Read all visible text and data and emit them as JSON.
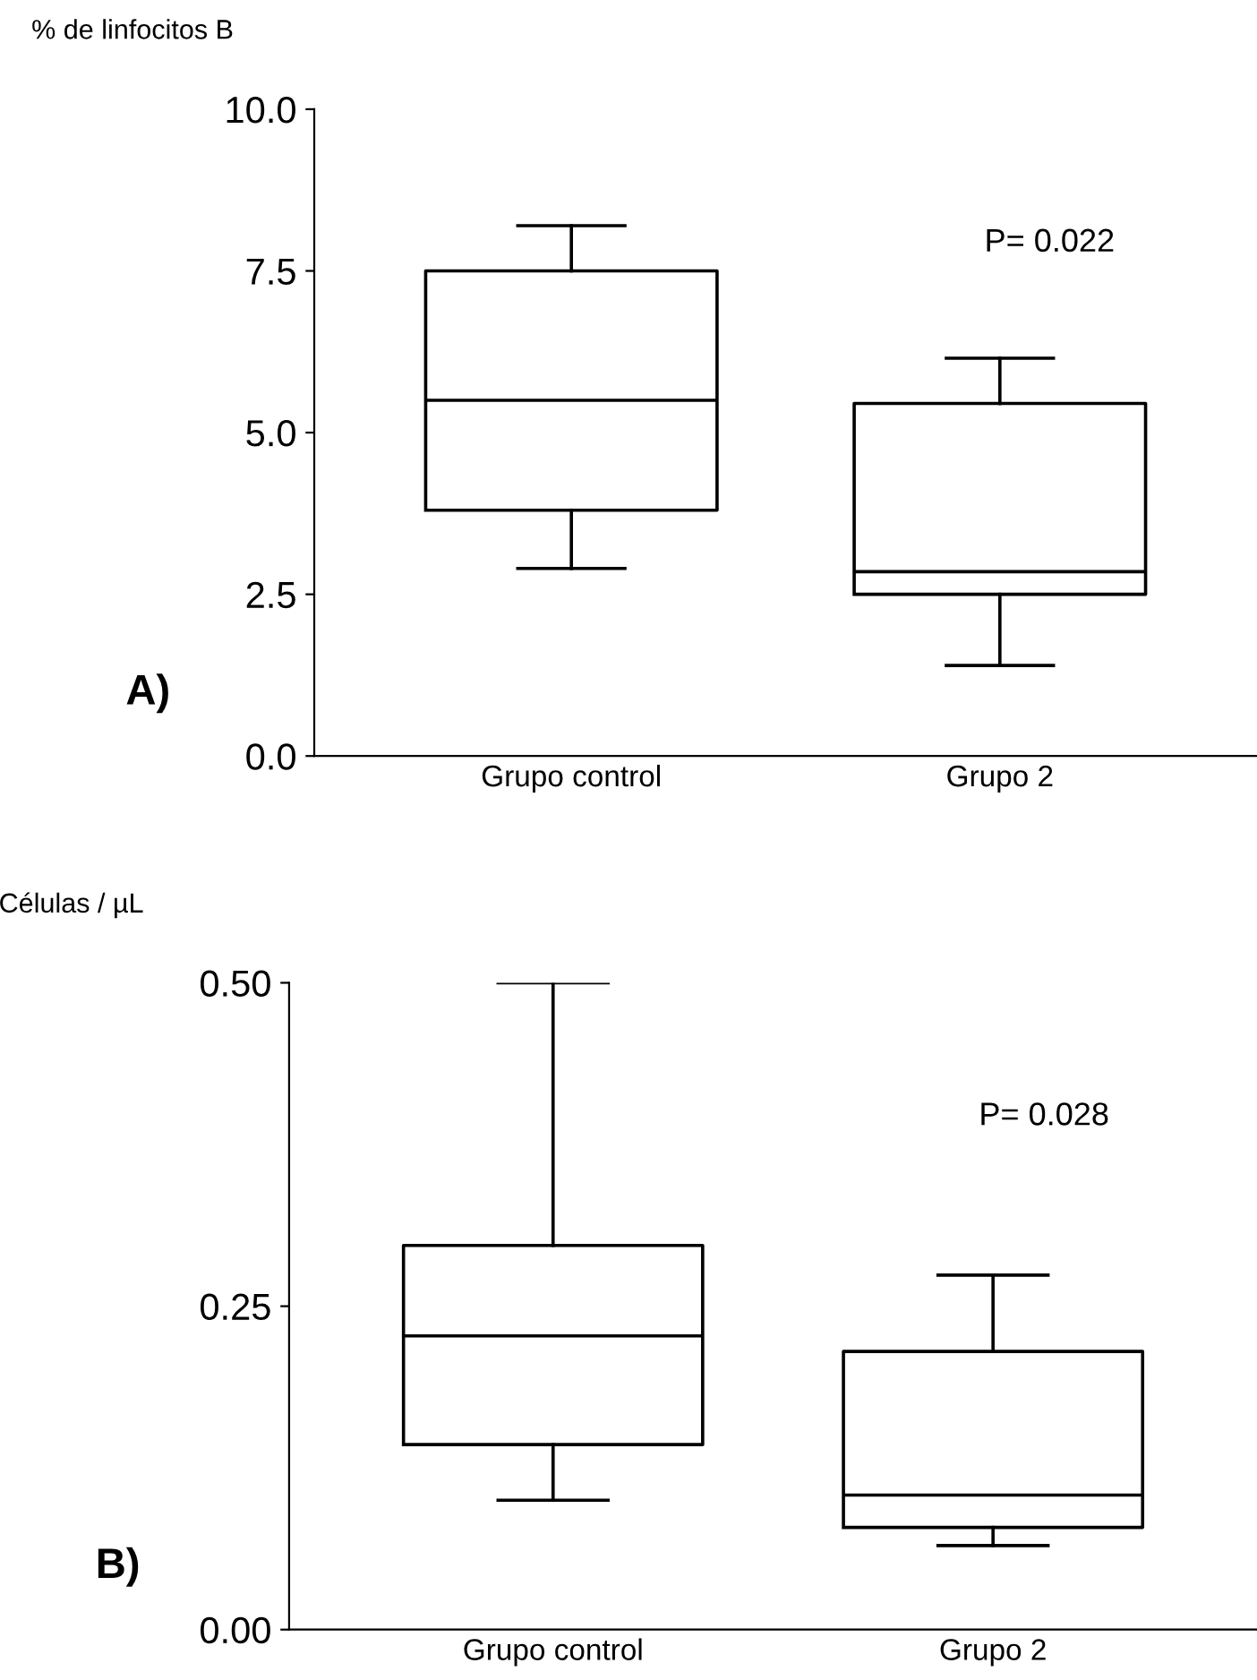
{
  "chart_data": [
    {
      "type": "box",
      "ylabel": "% de linfocitos B",
      "categories": [
        "Grupo control",
        "Grupo 2"
      ],
      "boxes": [
        {
          "low": 2.9,
          "q1": 3.8,
          "median": 5.5,
          "q3": 7.5,
          "high": 8.2
        },
        {
          "low": 1.4,
          "q1": 2.5,
          "median": 2.85,
          "q3": 5.45,
          "high": 6.15
        }
      ],
      "ylim": [
        0,
        10
      ],
      "yticks": [
        {
          "value": 0,
          "label": "0.0"
        },
        2.5,
        {
          "value": 5,
          "label": "5.0"
        },
        7.5,
        {
          "value": 10,
          "label": "10.0"
        }
      ],
      "annotations": [
        "P= 0.022",
        "A)"
      ],
      "grid": false
    },
    {
      "type": "box",
      "ylabel": "Células / µL",
      "categories": [
        "Grupo control",
        "Grupo 2"
      ],
      "boxes": [
        {
          "low": 0.1,
          "q1": 0.143,
          "median": 0.227,
          "q3": 0.297,
          "high": 0.5
        },
        {
          "low": 0.065,
          "q1": 0.079,
          "median": 0.104,
          "q3": 0.215,
          "high": 0.274
        }
      ],
      "ylim": [
        0,
        0.5
      ],
      "yticks": [
        {
          "value": 0,
          "label": "0.00"
        },
        0.25,
        {
          "value": 0.5,
          "label": "0.50"
        }
      ],
      "annotations": [
        "P= 0.028",
        "B)"
      ],
      "grid": false
    }
  ]
}
